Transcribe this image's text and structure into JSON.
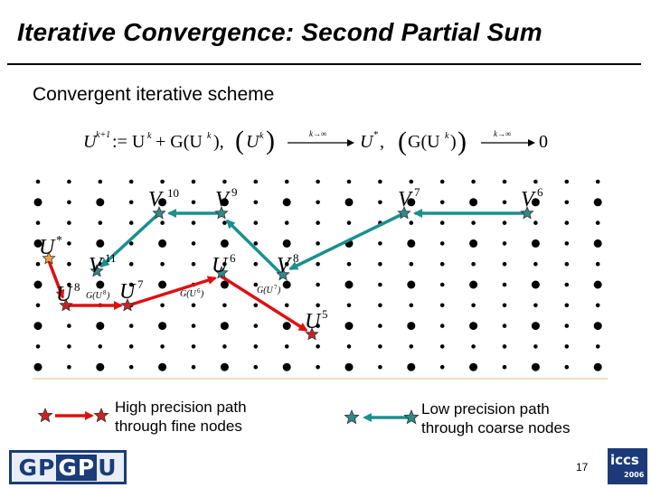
{
  "slide": {
    "title": "Iterative Convergence: Second Partial Sum",
    "subtitle": "Convergent iterative scheme",
    "page_number": "17"
  },
  "legend": {
    "high_precision": "High precision path\nthrough fine nodes",
    "low_precision": "Low precision path\nthrough coarse nodes"
  },
  "logos": {
    "left_a": "GP",
    "left_b": "GP",
    "left_c": "U",
    "right_word": "iccs",
    "right_year": "2006"
  },
  "colors": {
    "high_precision_path": "#dd1111",
    "low_precision_path": "#1a9090",
    "star_fill": "#2f8a8a",
    "star_red_fill": "#cc2222",
    "start_star": "#f2a24a",
    "baseline": "#e6d8a0",
    "logo_blue": "#1a3c78"
  }
}
